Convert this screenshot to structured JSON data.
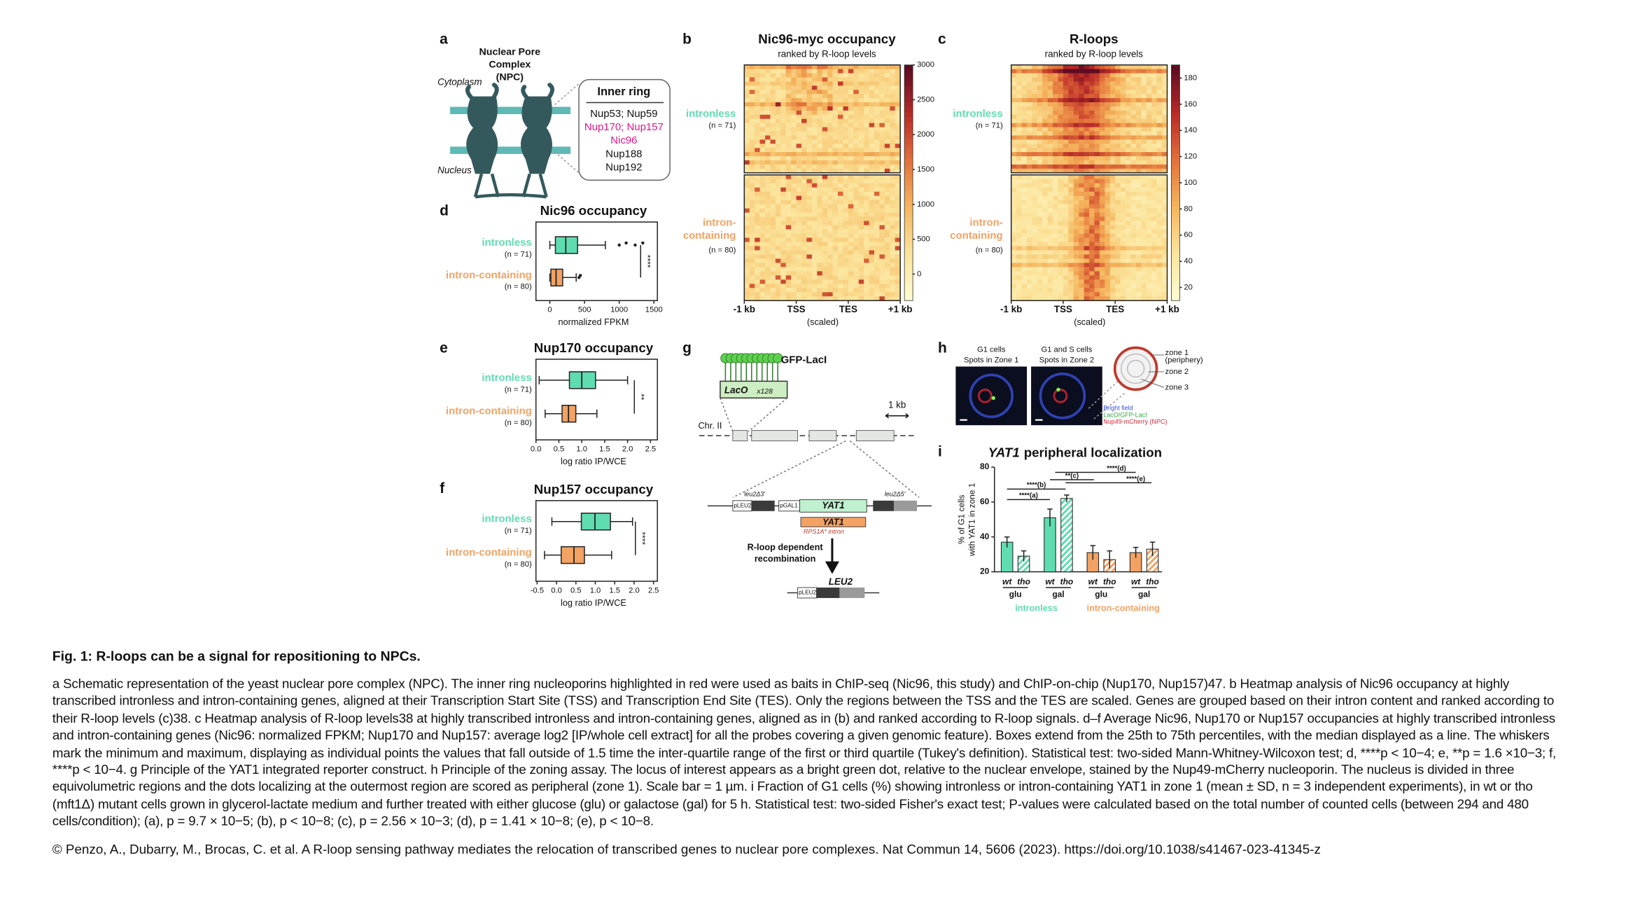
{
  "figure": {
    "panel_labels": [
      "a",
      "b",
      "c",
      "d",
      "e",
      "f",
      "g",
      "h",
      "i"
    ],
    "colors": {
      "intronless": "#5fdcb0",
      "intron-containing": "#f2a263"
    },
    "a": {
      "title_lines": [
        "Nuclear Pore",
        "Complex",
        "(NPC)"
      ],
      "cytoplasm": "Cytoplasm",
      "nucleus": "Nucleus",
      "inner_ring": {
        "title": "Inner ring",
        "members": [
          {
            "name": "Nup53; Nup59",
            "highlight": false
          },
          {
            "name": "Nup170; Nup157",
            "highlight": true
          },
          {
            "name": "Nic96",
            "highlight": true
          },
          {
            "name": "Nup188",
            "highlight": false
          },
          {
            "name": "Nup192",
            "highlight": false
          }
        ]
      }
    },
    "heatmaps": [
      {
        "title": "Nic96-myc occupancy",
        "subtitle": "ranked by R-loop levels",
        "clim": [
          -380,
          3000
        ],
        "cticks": [
          0,
          500,
          1000,
          1500,
          2000,
          2500,
          3000
        ],
        "groups": [
          {
            "label_lines": [
              "intronless"
            ],
            "n": "(n = 71)"
          },
          {
            "label_lines": [
              "intron-",
              "containing"
            ],
            "n": "(n = 80)"
          }
        ],
        "xticks": [
          "-1 kb",
          "TSS",
          "TES",
          "+1 kb"
        ],
        "xlabel": "(scaled)"
      },
      {
        "title": "R-loops",
        "subtitle": "ranked by R-loop levels",
        "clim": [
          10,
          190
        ],
        "cticks": [
          20,
          40,
          60,
          80,
          100,
          120,
          140,
          160,
          180
        ],
        "groups": [
          {
            "label_lines": [
              "intronless"
            ],
            "n": "(n = 71)"
          },
          {
            "label_lines": [
              "intron-",
              "containing"
            ],
            "n": "(n = 80)"
          }
        ],
        "xticks": [
          "-1 kb",
          "TSS",
          "TES",
          "+1 kb"
        ],
        "xlabel": "(scaled)"
      }
    ],
    "boxplots": [
      {
        "title": "Nic96 occupancy",
        "xlabel": "normalized FPKM",
        "xlim": [
          -200,
          1550
        ],
        "xticks": [
          0,
          500,
          1000,
          1500
        ],
        "significance": "****",
        "groups": [
          {
            "name": "intronless",
            "n": "(n = 71)",
            "whislo": 0,
            "q1": 80,
            "med": 230,
            "q3": 400,
            "whishi": 800,
            "outliers": [
              1000,
              1100,
              1230,
              1340
            ]
          },
          {
            "name": "intron-containing",
            "n": "(n = 80)",
            "whislo": 0,
            "q1": 15,
            "med": 90,
            "q3": 185,
            "whishi": 380,
            "outliers": [
              420,
              440
            ]
          }
        ]
      },
      {
        "title": "Nup170 occupancy",
        "xlabel": "log ratio IP/WCE",
        "xlim": [
          0,
          2.65
        ],
        "xticks": [
          {
            "value": 0,
            "label": "0.0"
          },
          0.5,
          {
            "value": 1,
            "label": "1.0"
          },
          1.5,
          {
            "value": 2,
            "label": "2.0"
          },
          2.5
        ],
        "significance": "**",
        "groups": [
          {
            "name": "intronless",
            "n": "(n = 71)",
            "whislo": 0.07,
            "q1": 0.73,
            "med": 1.0,
            "q3": 1.3,
            "whishi": 2.0,
            "outliers": []
          },
          {
            "name": "intron-containing",
            "n": "(n = 80)",
            "whislo": 0.2,
            "q1": 0.57,
            "med": 0.71,
            "q3": 0.87,
            "whishi": 1.33,
            "outliers": []
          }
        ]
      },
      {
        "title": "Nup157 occupancy",
        "xlabel": "log ratio IP/WCE",
        "xlim": [
          -0.53,
          2.6
        ],
        "xticks": [
          -0.5,
          {
            "value": 0,
            "label": "0.0"
          },
          0.5,
          {
            "value": 1,
            "label": "1.0"
          },
          1.5,
          {
            "value": 2,
            "label": "2.0"
          },
          2.5
        ],
        "significance": "****",
        "groups": [
          {
            "name": "intronless",
            "n": "(n = 71)",
            "whislo": -0.12,
            "q1": 0.64,
            "med": 0.99,
            "q3": 1.39,
            "whishi": 1.96,
            "outliers": []
          },
          {
            "name": "intron-containing",
            "n": "(n = 80)",
            "whislo": -0.31,
            "q1": 0.12,
            "med": 0.45,
            "q3": 0.72,
            "whishi": 1.42,
            "outliers": []
          }
        ]
      }
    ],
    "g": {
      "gfp": "GFP-LacI",
      "laco": "LacO",
      "laco_copies": "x128",
      "chr": "Chr. II",
      "scale": "1 kb",
      "leu2_3": "leu2Δ3'",
      "pleu2": "pLEU2",
      "pgal1": "pGAL1",
      "yat1": "YAT1",
      "leu2_5": "leu2Δ5'",
      "yat1_intron": "YAT1",
      "intron": "RPS1A* intron",
      "recomb_lines": [
        "R-loop dependent",
        "recombination"
      ],
      "leu2": "LEU2",
      "pleu2_final": "pLEU2"
    },
    "h": {
      "img1_lines": [
        "G1 cells",
        "Spots in Zone 1"
      ],
      "img2_lines": [
        "G1 and S cells",
        "Spots in Zone 2"
      ],
      "zones": [
        "zone 1",
        "(periphery)",
        "zone 2",
        "zone 3"
      ],
      "legend": [
        {
          "name": "Bright field",
          "color": "#3a4fd8"
        },
        {
          "name": "LacO/GFP-LacI",
          "color": "#2faa3c"
        },
        {
          "name": "Nup49-mCherry (NPC)",
          "color": "#d02a3a"
        }
      ]
    },
    "i": {
      "title_italic": "YAT1",
      "title": "peripheral localization",
      "ylabel_lines": [
        "% of G1 cells",
        "with YAT1 in zone 1"
      ],
      "ylim": [
        20,
        80
      ],
      "yticks": [
        20,
        40,
        60,
        80
      ],
      "groups": [
        {
          "name": "intronless",
          "conditions": [
            {
              "name": "glu",
              "bars": [
                {
                  "strain": "wt",
                  "value": 37,
                  "error": 3
                },
                {
                  "strain": "tho",
                  "value": 29,
                  "error": 3
                }
              ]
            },
            {
              "name": "gal",
              "bars": [
                {
                  "strain": "wt",
                  "value": 51,
                  "error": 5
                },
                {
                  "strain": "tho",
                  "value": 62,
                  "error": 2
                }
              ]
            }
          ]
        },
        {
          "name": "intron-containing",
          "conditions": [
            {
              "name": "glu",
              "bars": [
                {
                  "strain": "wt",
                  "value": 31,
                  "error": 4
                },
                {
                  "strain": "tho",
                  "value": 27,
                  "error": 5
                }
              ]
            },
            {
              "name": "gal",
              "bars": [
                {
                  "strain": "wt",
                  "value": 31,
                  "error": 3
                },
                {
                  "strain": "tho",
                  "value": 33,
                  "error": 4
                }
              ]
            }
          ]
        }
      ],
      "comparisons": [
        "****(a)",
        "****(b)",
        "**(c)",
        "****(d)",
        "****(e)"
      ]
    }
  },
  "caption": {
    "title": "Fig. 1: R-loops can be a signal for repositioning to NPCs.",
    "text": "a Schematic representation of the yeast nuclear pore complex (NPC). The inner ring nucleoporins highlighted in red were used as baits in ChIP-seq (Nic96, this study) and ChIP-on-chip (Nup170, Nup157)47. b Heatmap analysis of Nic96 occupancy at highly transcribed intronless and intron-containing genes, aligned at their Transcription Start Site (TSS) and Transcription End Site (TES). Only the regions between the TSS and the TES are scaled. Genes are grouped based on their intron content and ranked according to their R-loop levels (c)38. c Heatmap analysis of R-loop levels38 at highly transcribed intronless and intron-containing genes, aligned as in (b) and ranked according to R-loop signals. d–f Average Nic96, Nup170 or Nup157 occupancies at highly transcribed intronless and intron-containing genes (Nic96: normalized FPKM; Nup170 and Nup157: average log2 [IP/whole cell extract] for all the probes covering a given genomic feature). Boxes extend from the 25th to 75th percentiles, with the median displayed as a line. The whiskers mark the minimum and maximum, displaying as individual points the values that fall outside of 1.5 time the inter-quartile range of the first or third quartile (Tukey's definition). Statistical test: two-sided Mann-Whitney-Wilcoxon test; d, ****p < 10−4; e, **p = 1.6 ×10−3; f, ****p < 10−4. g Principle of the YAT1 integrated reporter construct. h Principle of the zoning assay. The locus of interest appears as a bright green dot, relative to the nuclear envelope, stained by the Nup49-mCherry nucleoporin. The nucleus is divided in three equivolumetric regions and the dots localizing at the outermost region are scored as peripheral (zone 1). Scale bar = 1 µm. i Fraction of G1 cells (%) showing intronless or intron-containing YAT1 in zone 1 (mean ± SD, n = 3 independent experiments), in wt or tho (mft1Δ) mutant cells grown in glycerol-lactate medium and further treated with either glucose (glu) or galactose (gal) for 5 h. Statistical test: two-sided Fisher's exact test; P-values were calculated based on the total number of counted cells (between 294 and 480 cells/condition); (a), p = 9.7 × 10−5; (b), p < 10−8; (c), p = 2.56 × 10−3; (d), p = 1.41 × 10−8; (e), p < 10−8.",
    "citation": "© Penzo, A., Dubarry, M., Brocas, C. et al. A R-loop sensing pathway mediates the relocation of transcribed genes to nuclear pore complexes. Nat Commun 14, 5606 (2023). https://doi.org/10.1038/s41467-023-41345-z"
  }
}
